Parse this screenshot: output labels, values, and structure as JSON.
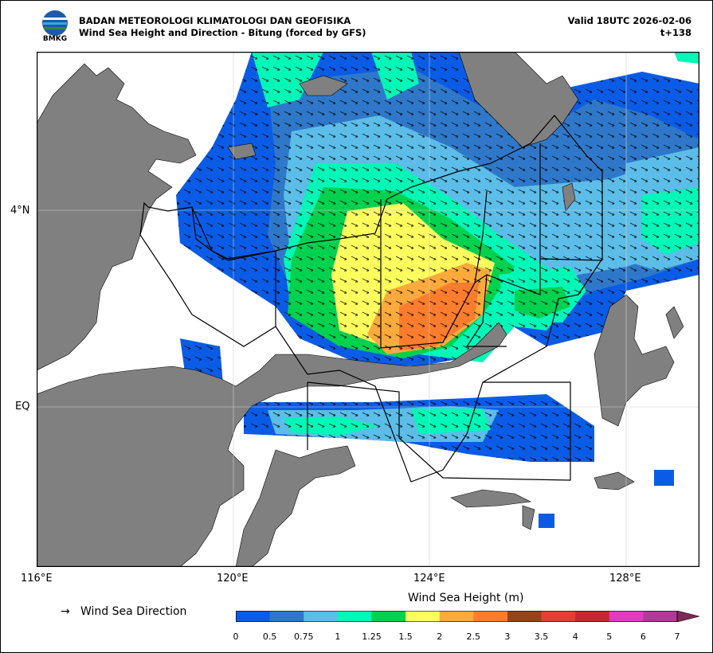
{
  "header": {
    "agency": "BADAN METEOROLOGI KLIMATOLOGI DAN GEOFISIKA",
    "subtitle": "Wind Sea Height and Direction - Bitung (forced by GFS)",
    "valid": "Valid 18UTC 2026-02-06",
    "lead": "t+138"
  },
  "logo": {
    "text": "BMKG"
  },
  "map": {
    "x_ticks": [
      "116°E",
      "120°E",
      "124°E",
      "128°E"
    ],
    "y_ticks": [
      "4°N",
      "EQ"
    ],
    "land_color": "#808080",
    "sea_color": "#ffffff"
  },
  "legend": {
    "arrow_symbol": "→",
    "arrow_label": "Wind Sea Direction"
  },
  "colorbar": {
    "title": "Wind Sea Height (m)",
    "ticks": [
      "0",
      "0.5",
      "0.75",
      "1",
      "1.25",
      "1.5",
      "2",
      "2.5",
      "3",
      "3.5",
      "4",
      "5",
      "6",
      "7"
    ],
    "colors": [
      "#0a5ce6",
      "#2f78c9",
      "#5bbde8",
      "#00f7b7",
      "#00d14f",
      "#fdfd5e",
      "#fdaa3c",
      "#fd7d2d",
      "#964519",
      "#e33f35",
      "#c5282e",
      "#e03bc3",
      "#b03a98"
    ],
    "extend_color": "#7a2a55"
  }
}
